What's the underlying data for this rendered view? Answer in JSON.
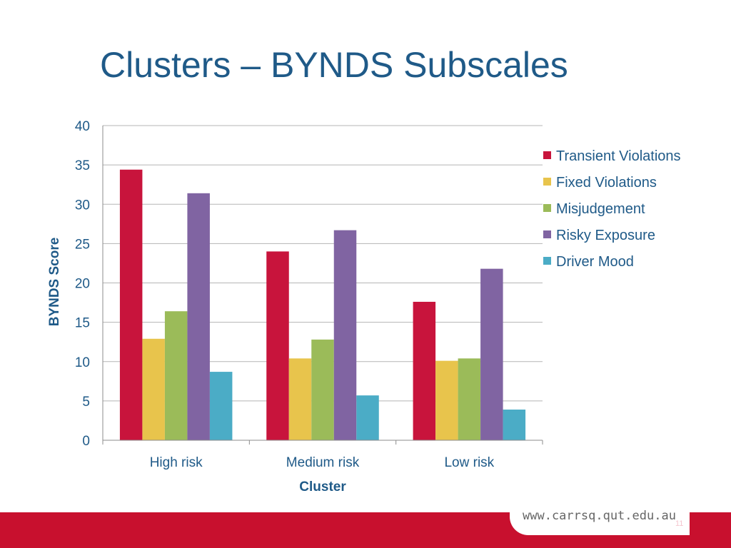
{
  "slide": {
    "title": "Clusters – BYNDS Subscales",
    "footer_url": "www.carrsq.qut.edu.au",
    "slide_number": "11"
  },
  "colors": {
    "title": "#1f5a88",
    "footer": "#c8102e"
  },
  "chart_data": {
    "type": "bar",
    "title": "",
    "xlabel": "Cluster",
    "ylabel": "BYNDS Score",
    "categories": [
      "High risk",
      "Medium risk",
      "Low risk"
    ],
    "ylim": [
      0,
      40
    ],
    "yticks": [
      "0",
      "5",
      "10",
      "15",
      "20",
      "25",
      "30",
      "35",
      "40"
    ],
    "grid": true,
    "legend_position": "right",
    "series": [
      {
        "name": "Transient Violations",
        "color": "#c8143c",
        "values": [
          34.4,
          24.0,
          17.6
        ]
      },
      {
        "name": "Fixed Violations",
        "color": "#e8c44c",
        "values": [
          12.9,
          10.4,
          10.1
        ]
      },
      {
        "name": "Misjudgement",
        "color": "#9bbb59",
        "values": [
          16.4,
          12.8,
          10.4
        ]
      },
      {
        "name": "Risky Exposure",
        "color": "#8064a2",
        "values": [
          31.4,
          26.7,
          21.8
        ]
      },
      {
        "name": "Driver Mood",
        "color": "#4bacc6",
        "values": [
          8.7,
          5.7,
          3.9
        ]
      }
    ]
  }
}
